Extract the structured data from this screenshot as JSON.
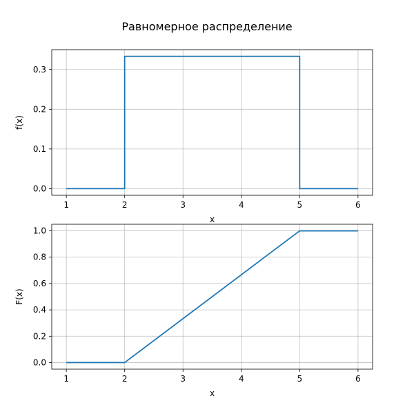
{
  "figure": {
    "title": "Равномерное распределение"
  },
  "chart_data": [
    {
      "type": "line",
      "title": "",
      "xlabel": "x",
      "ylabel": "f(x)",
      "xlim": [
        0.75,
        6.25
      ],
      "ylim": [
        -0.0167,
        0.35
      ],
      "x_ticks": [
        1,
        2,
        3,
        4,
        5,
        6
      ],
      "y_ticks": [
        0.0,
        0.1,
        0.2,
        0.3
      ],
      "y_tick_labels": [
        "0.0",
        "0.1",
        "0.2",
        "0.3"
      ],
      "grid": true,
      "color": "#1f77b4",
      "series": [
        {
          "x": [
            1,
            2,
            2,
            5,
            5,
            6
          ],
          "y": [
            0,
            0,
            0.3333,
            0.3333,
            0,
            0
          ]
        }
      ]
    },
    {
      "type": "line",
      "title": "",
      "xlabel": "x",
      "ylabel": "F(x)",
      "xlim": [
        0.75,
        6.25
      ],
      "ylim": [
        -0.05,
        1.05
      ],
      "x_ticks": [
        1,
        2,
        3,
        4,
        5,
        6
      ],
      "y_ticks": [
        0.0,
        0.2,
        0.4,
        0.6,
        0.8,
        1.0
      ],
      "y_tick_labels": [
        "0.0",
        "0.2",
        "0.4",
        "0.6",
        "0.8",
        "1.0"
      ],
      "grid": true,
      "color": "#1f77b4",
      "series": [
        {
          "x": [
            1,
            2,
            5,
            6
          ],
          "y": [
            0,
            0,
            1,
            1
          ]
        }
      ]
    }
  ]
}
